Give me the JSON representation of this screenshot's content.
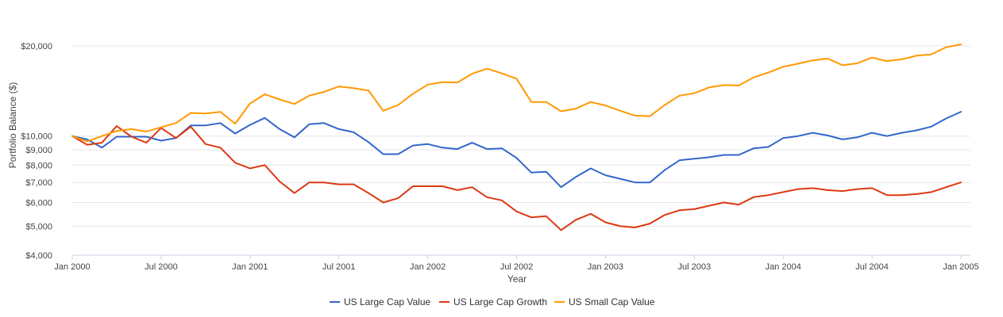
{
  "chart_data": {
    "type": "line",
    "title": "",
    "xlabel": "Year",
    "ylabel": "Portfolio Balance ($)",
    "y_scale": "log",
    "ylim": [
      4000,
      20500
    ],
    "y_ticks": [
      {
        "value": 4000,
        "label": "$4,000"
      },
      {
        "value": 5000,
        "label": "$5,000"
      },
      {
        "value": 6000,
        "label": "$6,000"
      },
      {
        "value": 7000,
        "label": "$7,000"
      },
      {
        "value": 8000,
        "label": "$8,000"
      },
      {
        "value": 9000,
        "label": "$9,000"
      },
      {
        "value": 10000,
        "label": "$10,000"
      },
      {
        "value": 20000,
        "label": "$20,000"
      }
    ],
    "x_ticks": [
      {
        "index": 0,
        "label": "Jan 2000"
      },
      {
        "index": 6,
        "label": "Jul 2000"
      },
      {
        "index": 12,
        "label": "Jan 2001"
      },
      {
        "index": 18,
        "label": "Jul 2001"
      },
      {
        "index": 24,
        "label": "Jan 2002"
      },
      {
        "index": 30,
        "label": "Jul 2002"
      },
      {
        "index": 36,
        "label": "Jan 2003"
      },
      {
        "index": 42,
        "label": "Jul 2003"
      },
      {
        "index": 48,
        "label": "Jan 2004"
      },
      {
        "index": 54,
        "label": "Jul 2004"
      },
      {
        "index": 60,
        "label": "Jan 2005"
      }
    ],
    "legend_position": "bottom-center",
    "series": [
      {
        "name": "US Large Cap Value",
        "color": "#3366cc",
        "values": [
          10000,
          9750,
          9150,
          9950,
          9950,
          9950,
          9650,
          9850,
          10850,
          10850,
          11050,
          10200,
          10900,
          11500,
          10550,
          9900,
          10950,
          11050,
          10550,
          10300,
          9550,
          8700,
          8700,
          9300,
          9400,
          9150,
          9050,
          9500,
          9050,
          9100,
          8450,
          7550,
          7600,
          6750,
          7300,
          7800,
          7400,
          7200,
          7000,
          7000,
          7700,
          8300,
          8400,
          8500,
          8650,
          8650,
          9100,
          9200,
          9850,
          10000,
          10250,
          10050,
          9750,
          9900,
          10250,
          10000,
          10250,
          10450,
          10750,
          11450,
          12050
        ]
      },
      {
        "name": "US Large Cap Growth",
        "color": "#dc3912",
        "values": [
          10000,
          9350,
          9500,
          10800,
          9950,
          9500,
          10650,
          9850,
          10750,
          9400,
          9150,
          8150,
          7800,
          8000,
          7050,
          6450,
          7000,
          7000,
          6900,
          6900,
          6450,
          6000,
          6200,
          6800,
          6800,
          6800,
          6600,
          6750,
          6250,
          6100,
          5600,
          5350,
          5400,
          4850,
          5250,
          5500,
          5150,
          5000,
          4950,
          5100,
          5450,
          5650,
          5700,
          5850,
          6000,
          5900,
          6250,
          6350,
          6500,
          6650,
          6700,
          6600,
          6550,
          6650,
          6700,
          6350,
          6350,
          6400,
          6500,
          6750,
          7000
        ]
      },
      {
        "name": "US Small Cap Value",
        "color": "#ff9900",
        "values": [
          10000,
          9600,
          10000,
          10400,
          10550,
          10350,
          10700,
          11050,
          11950,
          11900,
          12050,
          11000,
          12850,
          13800,
          13250,
          12800,
          13650,
          14050,
          14650,
          14450,
          14200,
          12150,
          12700,
          13850,
          14850,
          15150,
          15100,
          16150,
          16800,
          16200,
          15550,
          13000,
          13000,
          12100,
          12350,
          13000,
          12650,
          12150,
          11700,
          11650,
          12700,
          13650,
          13900,
          14550,
          14800,
          14750,
          15700,
          16300,
          17050,
          17450,
          17900,
          18150,
          17250,
          17500,
          18300,
          17800,
          18050,
          18550,
          18750,
          19800,
          20250
        ]
      }
    ]
  }
}
